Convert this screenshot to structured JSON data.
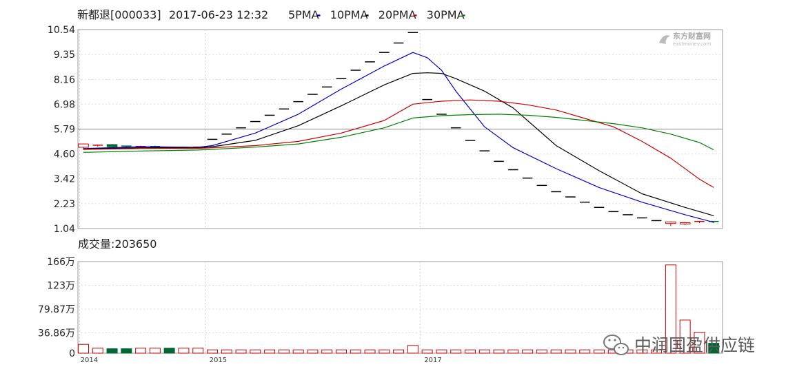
{
  "header": {
    "stock": "新都退[000033]",
    "datetime": "2017-06-23 12:32",
    "ma_legend": [
      {
        "label": "5PMA",
        "sym": "-",
        "color": "#0000cc"
      },
      {
        "label": "10PMA",
        "sym": "-",
        "color": "#000000"
      },
      {
        "label": "20PMA",
        "sym": "-",
        "color": "#cc0000"
      },
      {
        "label": "30PMA",
        "sym": "-",
        "color": "#008000"
      }
    ]
  },
  "volume_header": "成交量:203650",
  "watermark": {
    "top_logo": "东方财富网",
    "top_logo_sub": "eastmoney.com",
    "bottom_text": "中润国盈供应链"
  },
  "chart_data": [
    {
      "type": "candlestick-line",
      "name": "price",
      "y_ticks": [
        "10.54",
        "9.35",
        "8.16",
        "6.98",
        "5.79",
        "4.60",
        "3.42",
        "2.23",
        "1.04"
      ],
      "ylim": [
        1.04,
        10.54
      ],
      "x_labels": [],
      "candles": [
        {
          "o": 4.92,
          "c": 5.08,
          "h": 5.1,
          "l": 4.8,
          "dir": "up"
        },
        {
          "o": 5.0,
          "c": 5.02,
          "h": 5.05,
          "l": 4.95,
          "dir": "up"
        },
        {
          "o": 5.05,
          "c": 4.95,
          "h": 5.08,
          "l": 4.9,
          "dir": "down"
        },
        {
          "o": 4.98,
          "c": 4.94,
          "h": 5.0,
          "l": 4.9,
          "dir": "down"
        },
        {
          "o": 4.94,
          "c": 4.96,
          "h": 5.0,
          "l": 4.9,
          "dir": "up"
        },
        {
          "o": 4.96,
          "c": 4.92,
          "h": 5.0,
          "l": 4.88,
          "dir": "down"
        },
        {
          "o": 4.92,
          "c": 4.9,
          "h": 4.95,
          "l": 4.85,
          "dir": "flat"
        },
        {
          "o": 4.9,
          "c": 4.92,
          "h": 4.95,
          "l": 4.88,
          "dir": "flat"
        },
        {
          "o": 4.92,
          "c": 4.93,
          "h": 4.96,
          "l": 4.9,
          "dir": "up"
        },
        {
          "o": 5.3,
          "c": 5.3,
          "h": 5.3,
          "l": 5.3,
          "dir": "flat"
        },
        {
          "o": 5.55,
          "c": 5.55,
          "h": 5.55,
          "l": 5.55,
          "dir": "flat"
        },
        {
          "o": 5.85,
          "c": 5.85,
          "h": 5.85,
          "l": 5.85,
          "dir": "flat"
        },
        {
          "o": 6.15,
          "c": 6.15,
          "h": 6.15,
          "l": 6.15,
          "dir": "flat"
        },
        {
          "o": 6.45,
          "c": 6.45,
          "h": 6.45,
          "l": 6.45,
          "dir": "flat"
        },
        {
          "o": 6.75,
          "c": 6.75,
          "h": 6.75,
          "l": 6.75,
          "dir": "flat"
        },
        {
          "o": 7.1,
          "c": 7.1,
          "h": 7.1,
          "l": 7.1,
          "dir": "flat"
        },
        {
          "o": 7.45,
          "c": 7.45,
          "h": 7.45,
          "l": 7.45,
          "dir": "flat"
        },
        {
          "o": 7.8,
          "c": 7.8,
          "h": 7.8,
          "l": 7.8,
          "dir": "flat"
        },
        {
          "o": 8.2,
          "c": 8.2,
          "h": 8.2,
          "l": 8.2,
          "dir": "flat"
        },
        {
          "o": 8.6,
          "c": 8.6,
          "h": 8.6,
          "l": 8.6,
          "dir": "flat"
        },
        {
          "o": 9.0,
          "c": 9.0,
          "h": 9.0,
          "l": 9.0,
          "dir": "flat"
        },
        {
          "o": 9.45,
          "c": 9.45,
          "h": 9.45,
          "l": 9.45,
          "dir": "flat"
        },
        {
          "o": 9.9,
          "c": 9.9,
          "h": 9.9,
          "l": 9.9,
          "dir": "flat"
        },
        {
          "o": 10.4,
          "c": 10.4,
          "h": 10.4,
          "l": 10.4,
          "dir": "flat"
        },
        {
          "o": 7.2,
          "c": 7.2,
          "h": 7.2,
          "l": 7.2,
          "dir": "flat"
        },
        {
          "o": 6.5,
          "c": 6.5,
          "h": 6.5,
          "l": 6.5,
          "dir": "flat"
        },
        {
          "o": 5.85,
          "c": 5.85,
          "h": 5.85,
          "l": 5.85,
          "dir": "flat"
        },
        {
          "o": 5.25,
          "c": 5.25,
          "h": 5.25,
          "l": 5.25,
          "dir": "flat"
        },
        {
          "o": 4.75,
          "c": 4.75,
          "h": 4.75,
          "l": 4.75,
          "dir": "flat"
        },
        {
          "o": 4.25,
          "c": 4.25,
          "h": 4.25,
          "l": 4.25,
          "dir": "flat"
        },
        {
          "o": 3.85,
          "c": 3.85,
          "h": 3.85,
          "l": 3.85,
          "dir": "flat"
        },
        {
          "o": 3.45,
          "c": 3.45,
          "h": 3.45,
          "l": 3.45,
          "dir": "flat"
        },
        {
          "o": 3.1,
          "c": 3.1,
          "h": 3.1,
          "l": 3.1,
          "dir": "flat"
        },
        {
          "o": 2.8,
          "c": 2.8,
          "h": 2.8,
          "l": 2.8,
          "dir": "flat"
        },
        {
          "o": 2.55,
          "c": 2.55,
          "h": 2.55,
          "l": 2.55,
          "dir": "flat"
        },
        {
          "o": 2.3,
          "c": 2.3,
          "h": 2.3,
          "l": 2.3,
          "dir": "flat"
        },
        {
          "o": 2.05,
          "c": 2.05,
          "h": 2.05,
          "l": 2.05,
          "dir": "flat"
        },
        {
          "o": 1.85,
          "c": 1.85,
          "h": 1.85,
          "l": 1.85,
          "dir": "flat"
        },
        {
          "o": 1.7,
          "c": 1.7,
          "h": 1.7,
          "l": 1.7,
          "dir": "flat"
        },
        {
          "o": 1.55,
          "c": 1.55,
          "h": 1.55,
          "l": 1.55,
          "dir": "flat"
        },
        {
          "o": 1.42,
          "c": 1.42,
          "h": 1.42,
          "l": 1.42,
          "dir": "flat"
        },
        {
          "o": 1.28,
          "c": 1.36,
          "h": 1.38,
          "l": 1.16,
          "dir": "up"
        },
        {
          "o": 1.26,
          "c": 1.32,
          "h": 1.34,
          "l": 1.2,
          "dir": "up"
        },
        {
          "o": 1.34,
          "c": 1.38,
          "h": 1.4,
          "l": 1.3,
          "dir": "up"
        },
        {
          "o": 1.38,
          "c": 1.34,
          "h": 1.4,
          "l": 1.3,
          "dir": "down"
        }
      ],
      "series": [
        {
          "name": "5PMA",
          "color": "#0000cc",
          "x": [
            0,
            4,
            8,
            9,
            12,
            15,
            18,
            21,
            23,
            24,
            25,
            26,
            28,
            30,
            33,
            36,
            39,
            42,
            44
          ],
          "y": [
            4.86,
            4.95,
            4.92,
            5.0,
            5.6,
            6.5,
            7.7,
            8.8,
            9.45,
            9.2,
            8.6,
            7.6,
            5.9,
            4.9,
            3.9,
            3.0,
            2.3,
            1.7,
            1.34
          ]
        },
        {
          "name": "10PMA",
          "color": "#000000",
          "x": [
            0,
            4,
            8,
            9,
            12,
            15,
            18,
            21,
            23,
            24,
            25,
            26,
            28,
            30,
            33,
            36,
            39,
            42,
            44
          ],
          "y": [
            4.84,
            4.9,
            4.9,
            4.95,
            5.25,
            5.95,
            6.9,
            7.9,
            8.45,
            8.48,
            8.45,
            8.2,
            7.6,
            6.8,
            5.0,
            3.8,
            2.7,
            2.05,
            1.65
          ]
        },
        {
          "name": "20PMA",
          "color": "#cc0000",
          "x": [
            0,
            4,
            8,
            9,
            12,
            15,
            18,
            21,
            23,
            25,
            27,
            29,
            31,
            33,
            35,
            37,
            39,
            41,
            43,
            44
          ],
          "y": [
            4.82,
            4.86,
            4.87,
            4.9,
            5.0,
            5.2,
            5.6,
            6.2,
            6.98,
            7.12,
            7.18,
            7.12,
            6.95,
            6.7,
            6.3,
            5.9,
            5.2,
            4.4,
            3.4,
            3.0
          ]
        },
        {
          "name": "30PMA",
          "color": "#008000",
          "x": [
            0,
            4,
            8,
            9,
            12,
            15,
            18,
            21,
            23,
            25,
            27,
            29,
            31,
            33,
            35,
            37,
            39,
            41,
            43,
            44
          ],
          "y": [
            4.68,
            4.74,
            4.79,
            4.82,
            4.93,
            5.08,
            5.4,
            5.85,
            6.32,
            6.43,
            6.48,
            6.5,
            6.45,
            6.35,
            6.2,
            6.05,
            5.85,
            5.55,
            5.15,
            4.8
          ]
        }
      ]
    },
    {
      "type": "bar",
      "name": "volume",
      "y_ticks": [
        "166万",
        "123万",
        "79.87万",
        "36.86万",
        "0"
      ],
      "ylim": [
        0,
        166
      ],
      "x_labels": [
        {
          "i": 0,
          "label": "2014"
        },
        {
          "i": 9,
          "label": "2015"
        },
        {
          "i": 24,
          "label": "2017"
        }
      ],
      "values": [
        16,
        9,
        8,
        8,
        9,
        9,
        9,
        9,
        9,
        6,
        6,
        6,
        6,
        6,
        6,
        6,
        6,
        6,
        6,
        6,
        6,
        6,
        6,
        14,
        6,
        6,
        6,
        6,
        6,
        6,
        6,
        6,
        6,
        6,
        6,
        6,
        6,
        6,
        6,
        6,
        6,
        160,
        60,
        38,
        18
      ],
      "colors": [
        "up",
        "up",
        "down",
        "down",
        "up",
        "up",
        "down",
        "up",
        "up",
        "up",
        "up",
        "up",
        "up",
        "up",
        "up",
        "up",
        "up",
        "up",
        "up",
        "up",
        "up",
        "up",
        "up",
        "up",
        "up",
        "up",
        "up",
        "up",
        "up",
        "up",
        "up",
        "up",
        "up",
        "up",
        "up",
        "up",
        "up",
        "up",
        "up",
        "up",
        "up",
        "up",
        "up",
        "up",
        "down"
      ]
    }
  ]
}
